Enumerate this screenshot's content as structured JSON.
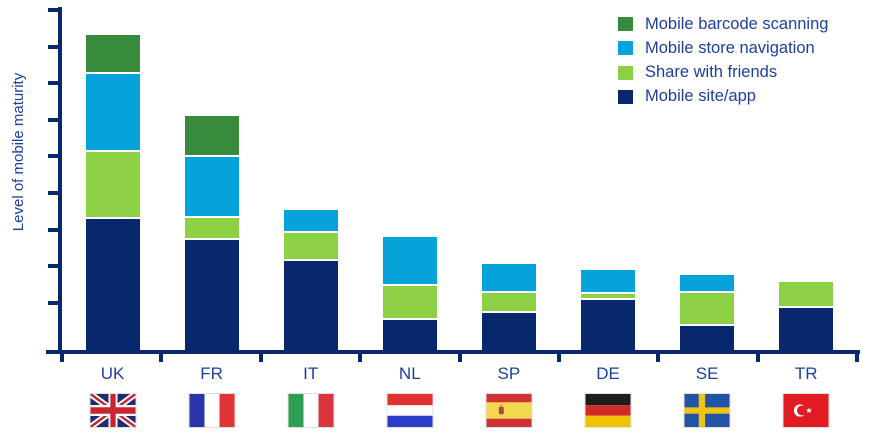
{
  "chart_data": {
    "type": "bar",
    "stacked": true,
    "stack_order": "bottom-to-top",
    "title": "",
    "xlabel": "",
    "ylabel": "Level of mobile maturity",
    "value_scale": "relative units 0-100 (y-axis has ticks but no numeric labels)",
    "ylim": [
      0,
      100
    ],
    "grid": false,
    "legend_position": "top-right",
    "legend_order_top_to_bottom": [
      "Mobile barcode scanning",
      "Mobile store navigation",
      "Share with friends",
      "Mobile site/app"
    ],
    "categories": [
      {
        "label": "UK",
        "flag": "united-kingdom"
      },
      {
        "label": "FR",
        "flag": "france"
      },
      {
        "label": "IT",
        "flag": "italy"
      },
      {
        "label": "NL",
        "flag": "netherlands"
      },
      {
        "label": "SP",
        "flag": "spain"
      },
      {
        "label": "DE",
        "flag": "germany"
      },
      {
        "label": "SE",
        "flag": "sweden"
      },
      {
        "label": "TR",
        "flag": "turkey"
      }
    ],
    "series": [
      {
        "name": "Mobile site/app",
        "color": "#07286d",
        "values": [
          39.1,
          33.0,
          26.7,
          9.4,
          11.5,
          15.2,
          7.6,
          13.0
        ]
      },
      {
        "name": "Share with friends",
        "color": "#8cd043",
        "values": [
          19.8,
          6.3,
          8.2,
          10.0,
          6.0,
          2.0,
          9.9,
          7.1
        ]
      },
      {
        "name": "Mobile store navigation",
        "color": "#05a3da",
        "values": [
          22.9,
          18.2,
          6.4,
          13.9,
          7.9,
          6.2,
          4.7,
          0
        ]
      },
      {
        "name": "Mobile barcode scanning",
        "color": "#388a3d",
        "values": [
          10.9,
          11.2,
          0,
          0,
          0,
          0,
          0,
          0
        ]
      }
    ]
  },
  "colors": {
    "axis": "#07286d",
    "text": "#1d40a0",
    "background": "#ffffff"
  }
}
